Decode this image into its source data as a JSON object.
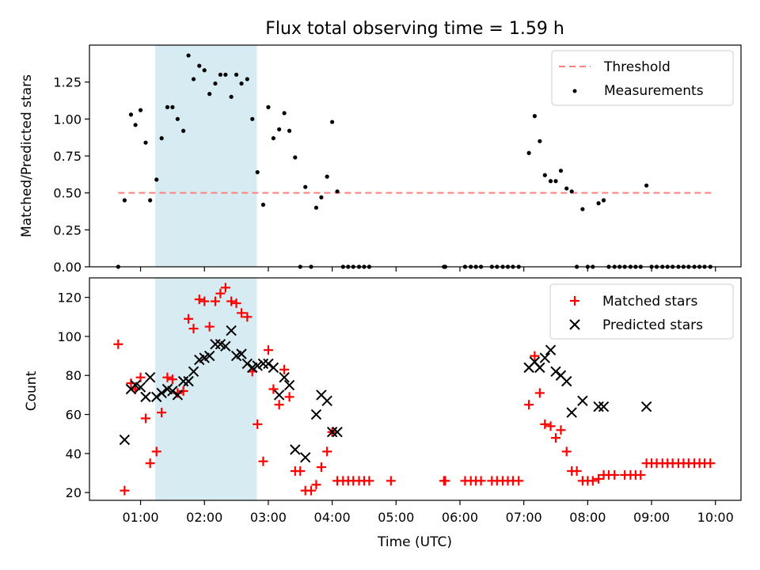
{
  "chart_data": [
    {
      "type": "scatter",
      "title": "Flux total observing time = 1.59 h",
      "xlabel": "",
      "ylabel": "Matched/Predicted stars",
      "xlim_hours": [
        0.2,
        10.4
      ],
      "ylim": [
        0,
        1.5
      ],
      "yticks": [
        0.0,
        0.25,
        0.5,
        0.75,
        1.0,
        1.25
      ],
      "ytick_labels": [
        "0.00",
        "0.25",
        "0.50",
        "0.75",
        "1.00",
        "1.25"
      ],
      "highlight_span_hours": [
        1.23,
        2.82
      ],
      "highlight_color": "#add8e6",
      "threshold": {
        "name": "Threshold",
        "y": 0.5,
        "x_range_hours": [
          0.65,
          9.95
        ],
        "color": "#ff7f7f"
      },
      "legend": {
        "position": "top-right",
        "entries": [
          "Threshold",
          "Measurements"
        ]
      },
      "series": [
        {
          "name": "Measurements",
          "color": "#000000",
          "points": [
            [
              0.65,
              0.0
            ],
            [
              0.75,
              0.45
            ],
            [
              0.85,
              1.03
            ],
            [
              0.92,
              0.96
            ],
            [
              1.0,
              1.06
            ],
            [
              1.08,
              0.84
            ],
            [
              1.15,
              0.45
            ],
            [
              1.25,
              0.59
            ],
            [
              1.33,
              0.87
            ],
            [
              1.42,
              1.08
            ],
            [
              1.5,
              1.08
            ],
            [
              1.58,
              1.0
            ],
            [
              1.67,
              0.92
            ],
            [
              1.75,
              1.43
            ],
            [
              1.83,
              1.27
            ],
            [
              1.92,
              1.36
            ],
            [
              2.0,
              1.33
            ],
            [
              2.08,
              1.17
            ],
            [
              2.17,
              1.24
            ],
            [
              2.25,
              1.3
            ],
            [
              2.33,
              1.3
            ],
            [
              2.42,
              1.15
            ],
            [
              2.5,
              1.3
            ],
            [
              2.58,
              1.24
            ],
            [
              2.67,
              1.27
            ],
            [
              2.75,
              1.0
            ],
            [
              2.83,
              0.64
            ],
            [
              2.92,
              0.42
            ],
            [
              3.0,
              1.08
            ],
            [
              3.08,
              0.87
            ],
            [
              3.17,
              0.93
            ],
            [
              3.25,
              1.04
            ],
            [
              3.33,
              0.92
            ],
            [
              3.42,
              0.74
            ],
            [
              3.5,
              0.0
            ],
            [
              3.58,
              0.54
            ],
            [
              3.67,
              0.0
            ],
            [
              3.75,
              0.4
            ],
            [
              3.83,
              0.47
            ],
            [
              3.92,
              0.61
            ],
            [
              4.0,
              0.98
            ],
            [
              4.08,
              0.51
            ],
            [
              4.17,
              0.0
            ],
            [
              4.25,
              0.0
            ],
            [
              4.33,
              0.0
            ],
            [
              4.42,
              0.0
            ],
            [
              4.5,
              0.0
            ],
            [
              4.58,
              0.0
            ],
            [
              5.75,
              0.0
            ],
            [
              5.77,
              0.0
            ],
            [
              6.08,
              0.0
            ],
            [
              6.17,
              0.0
            ],
            [
              6.25,
              0.0
            ],
            [
              6.33,
              0.0
            ],
            [
              6.5,
              0.0
            ],
            [
              6.58,
              0.0
            ],
            [
              6.67,
              0.0
            ],
            [
              6.75,
              0.0
            ],
            [
              6.83,
              0.0
            ],
            [
              6.92,
              0.0
            ],
            [
              7.08,
              0.77
            ],
            [
              7.17,
              1.02
            ],
            [
              7.25,
              0.85
            ],
            [
              7.33,
              0.62
            ],
            [
              7.42,
              0.58
            ],
            [
              7.5,
              0.58
            ],
            [
              7.58,
              0.65
            ],
            [
              7.67,
              0.53
            ],
            [
              7.75,
              0.51
            ],
            [
              7.83,
              0.0
            ],
            [
              7.92,
              0.39
            ],
            [
              8.0,
              0.0
            ],
            [
              8.08,
              0.0
            ],
            [
              8.17,
              0.43
            ],
            [
              8.25,
              0.45
            ],
            [
              8.33,
              0.0
            ],
            [
              8.42,
              0.0
            ],
            [
              8.5,
              0.0
            ],
            [
              8.58,
              0.0
            ],
            [
              8.67,
              0.0
            ],
            [
              8.75,
              0.0
            ],
            [
              8.83,
              0.0
            ],
            [
              8.92,
              0.55
            ],
            [
              9.0,
              0.0
            ],
            [
              9.08,
              0.0
            ],
            [
              9.17,
              0.0
            ],
            [
              9.25,
              0.0
            ],
            [
              9.33,
              0.0
            ],
            [
              9.42,
              0.0
            ],
            [
              9.5,
              0.0
            ],
            [
              9.58,
              0.0
            ],
            [
              9.67,
              0.0
            ],
            [
              9.75,
              0.0
            ],
            [
              9.83,
              0.0
            ],
            [
              9.92,
              0.0
            ]
          ]
        }
      ]
    },
    {
      "type": "scatter",
      "title": "",
      "xlabel": "Time (UTC)",
      "ylabel": "Count",
      "xlim_hours": [
        0.2,
        10.4
      ],
      "ylim": [
        16,
        130
      ],
      "yticks": [
        20,
        40,
        60,
        80,
        100,
        120
      ],
      "ytick_labels": [
        "20",
        "40",
        "60",
        "80",
        "100",
        "120"
      ],
      "xticks_hours": [
        1,
        2,
        3,
        4,
        5,
        6,
        7,
        8,
        9,
        10
      ],
      "xtick_labels": [
        "01:00",
        "02:00",
        "03:00",
        "04:00",
        "05:00",
        "06:00",
        "07:00",
        "08:00",
        "09:00",
        "10:00"
      ],
      "highlight_span_hours": [
        1.23,
        2.82
      ],
      "highlight_color": "#add8e6",
      "legend": {
        "position": "top-right",
        "entries": [
          "Matched stars",
          "Predicted stars"
        ]
      },
      "series": [
        {
          "name": "Matched stars",
          "marker": "+",
          "color": "#ff0000",
          "points": [
            [
              0.65,
              96
            ],
            [
              0.75,
              21
            ],
            [
              0.85,
              76
            ],
            [
              0.92,
              73
            ],
            [
              1.0,
              79
            ],
            [
              1.08,
              58
            ],
            [
              1.15,
              35
            ],
            [
              1.25,
              41
            ],
            [
              1.33,
              61
            ],
            [
              1.42,
              79
            ],
            [
              1.5,
              78
            ],
            [
              1.58,
              71
            ],
            [
              1.67,
              72
            ],
            [
              1.75,
              109
            ],
            [
              1.83,
              104
            ],
            [
              1.92,
              119
            ],
            [
              2.0,
              118
            ],
            [
              2.08,
              105
            ],
            [
              2.17,
              118
            ],
            [
              2.25,
              122
            ],
            [
              2.33,
              125
            ],
            [
              2.42,
              118
            ],
            [
              2.5,
              117
            ],
            [
              2.58,
              112
            ],
            [
              2.67,
              110
            ],
            [
              2.75,
              82
            ],
            [
              2.83,
              55
            ],
            [
              2.92,
              36
            ],
            [
              3.0,
              93
            ],
            [
              3.08,
              73
            ],
            [
              3.17,
              65
            ],
            [
              3.25,
              83
            ],
            [
              3.33,
              69
            ],
            [
              3.42,
              31
            ],
            [
              3.5,
              31
            ],
            [
              3.58,
              21
            ],
            [
              3.67,
              21
            ],
            [
              3.75,
              24
            ],
            [
              3.83,
              33
            ],
            [
              3.92,
              41
            ],
            [
              4.0,
              51
            ],
            [
              4.08,
              26
            ],
            [
              4.17,
              26
            ],
            [
              4.25,
              26
            ],
            [
              4.33,
              26
            ],
            [
              4.42,
              26
            ],
            [
              4.5,
              26
            ],
            [
              4.58,
              26
            ],
            [
              4.92,
              26
            ],
            [
              5.75,
              26
            ],
            [
              5.77,
              26
            ],
            [
              6.08,
              26
            ],
            [
              6.17,
              26
            ],
            [
              6.25,
              26
            ],
            [
              6.33,
              26
            ],
            [
              6.5,
              26
            ],
            [
              6.58,
              26
            ],
            [
              6.67,
              26
            ],
            [
              6.75,
              26
            ],
            [
              6.83,
              26
            ],
            [
              6.92,
              26
            ],
            [
              7.08,
              65
            ],
            [
              7.17,
              90
            ],
            [
              7.25,
              71
            ],
            [
              7.33,
              55
            ],
            [
              7.42,
              54
            ],
            [
              7.5,
              48
            ],
            [
              7.58,
              52
            ],
            [
              7.67,
              41
            ],
            [
              7.75,
              31
            ],
            [
              7.83,
              31
            ],
            [
              7.92,
              26
            ],
            [
              8.0,
              26
            ],
            [
              8.08,
              26
            ],
            [
              8.17,
              27
            ],
            [
              8.25,
              29
            ],
            [
              8.33,
              29
            ],
            [
              8.42,
              29
            ],
            [
              8.58,
              29
            ],
            [
              8.67,
              29
            ],
            [
              8.75,
              29
            ],
            [
              8.83,
              29
            ],
            [
              8.92,
              35
            ],
            [
              9.0,
              35
            ],
            [
              9.08,
              35
            ],
            [
              9.17,
              35
            ],
            [
              9.25,
              35
            ],
            [
              9.33,
              35
            ],
            [
              9.42,
              35
            ],
            [
              9.5,
              35
            ],
            [
              9.58,
              35
            ],
            [
              9.67,
              35
            ],
            [
              9.75,
              35
            ],
            [
              9.83,
              35
            ],
            [
              9.92,
              35
            ]
          ]
        },
        {
          "name": "Predicted stars",
          "marker": "x",
          "color": "#000000",
          "points": [
            [
              0.75,
              47
            ],
            [
              0.85,
              73
            ],
            [
              0.92,
              75
            ],
            [
              1.0,
              74
            ],
            [
              1.08,
              69
            ],
            [
              1.15,
              79
            ],
            [
              1.25,
              69
            ],
            [
              1.33,
              71
            ],
            [
              1.42,
              73
            ],
            [
              1.5,
              72
            ],
            [
              1.58,
              70
            ],
            [
              1.67,
              77
            ],
            [
              1.75,
              77
            ],
            [
              1.83,
              82
            ],
            [
              1.92,
              88
            ],
            [
              2.0,
              89
            ],
            [
              2.08,
              90
            ],
            [
              2.17,
              96
            ],
            [
              2.25,
              96
            ],
            [
              2.33,
              95
            ],
            [
              2.42,
              103
            ],
            [
              2.5,
              90
            ],
            [
              2.58,
              91
            ],
            [
              2.67,
              86
            ],
            [
              2.75,
              84
            ],
            [
              2.83,
              85
            ],
            [
              2.92,
              86
            ],
            [
              3.0,
              86
            ],
            [
              3.08,
              84
            ],
            [
              3.17,
              70
            ],
            [
              3.25,
              79
            ],
            [
              3.33,
              75
            ],
            [
              3.42,
              42
            ],
            [
              3.58,
              38
            ],
            [
              3.75,
              60
            ],
            [
              3.83,
              70
            ],
            [
              3.92,
              67
            ],
            [
              4.0,
              51
            ],
            [
              4.08,
              51
            ],
            [
              7.08,
              84
            ],
            [
              7.17,
              87
            ],
            [
              7.25,
              84
            ],
            [
              7.33,
              89
            ],
            [
              7.42,
              93
            ],
            [
              7.5,
              82
            ],
            [
              7.58,
              80
            ],
            [
              7.67,
              77
            ],
            [
              7.75,
              61
            ],
            [
              7.92,
              67
            ],
            [
              8.17,
              64
            ],
            [
              8.25,
              64
            ],
            [
              8.92,
              64
            ]
          ]
        }
      ]
    }
  ]
}
